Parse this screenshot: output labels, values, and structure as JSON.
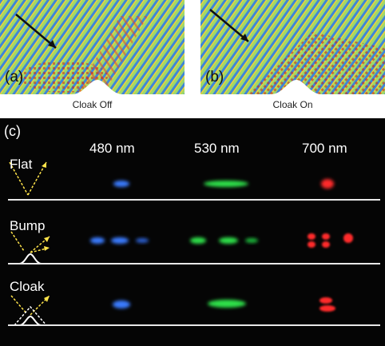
{
  "panel_a": {
    "label": "(a)",
    "caption": "Cloak Off"
  },
  "panel_b": {
    "label": "(b)",
    "caption": "Cloak On"
  },
  "panel_c": {
    "label": "(c)",
    "wavelengths": [
      "480 nm",
      "530 nm",
      "700 nm"
    ],
    "rows": [
      "Flat",
      "Bump",
      "Cloak"
    ],
    "colors": {
      "blue": "#3a7bff",
      "green": "#2ee04a",
      "red": "#ff2a2a",
      "field_green": "#8fd35c",
      "field_blue": "#2f77d8",
      "field_red": "#e2492e",
      "arrow": "#ffe44a"
    }
  }
}
